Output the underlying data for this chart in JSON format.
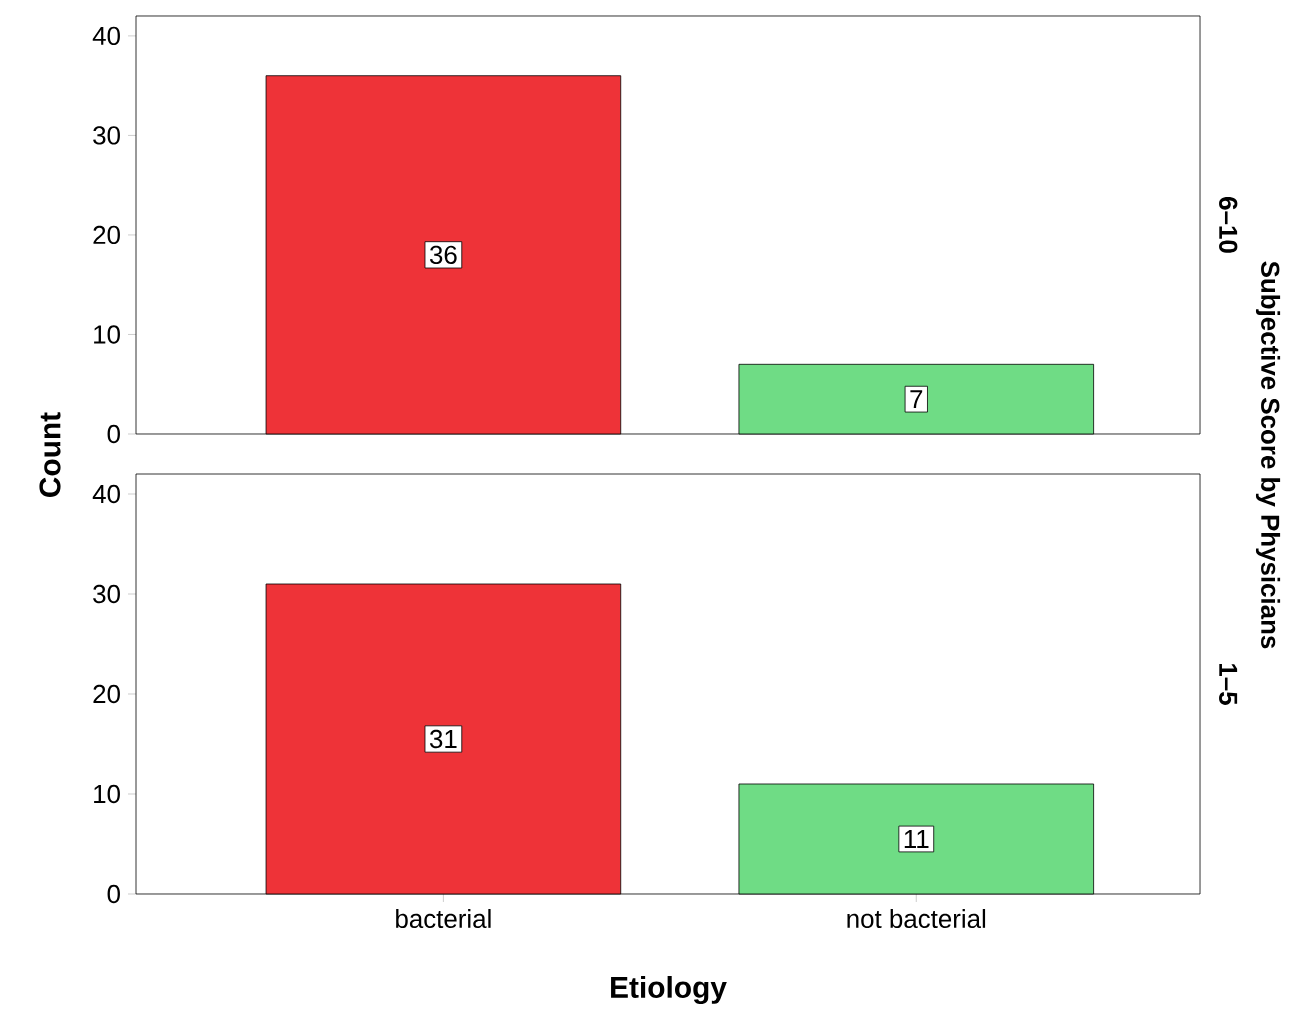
{
  "chart_data": [
    {
      "type": "bar",
      "annotations": [
        "6–10"
      ],
      "ylabel": "Count",
      "y2label": "Subjective Score by Physicians",
      "categories": [
        null,
        null
      ],
      "values": [
        36,
        7
      ],
      "colors": [
        "#ee3338",
        "#6fdc85"
      ],
      "ylim": [
        0,
        42
      ],
      "yticks": [
        0,
        10,
        20,
        30,
        40
      ],
      "data_labels": true,
      "tick_labels": "y"
    },
    {
      "type": "bar",
      "annotations": [
        "1–5"
      ],
      "xlabel": "Etiology",
      "categories": [
        "bacterial",
        "not bacterial"
      ],
      "values": [
        31,
        11
      ],
      "colors": [
        "#ee3338",
        "#6fdc85"
      ],
      "ylim": [
        0,
        42
      ],
      "yticks": [
        0,
        10,
        20,
        30,
        40
      ],
      "data_labels": true
    }
  ]
}
